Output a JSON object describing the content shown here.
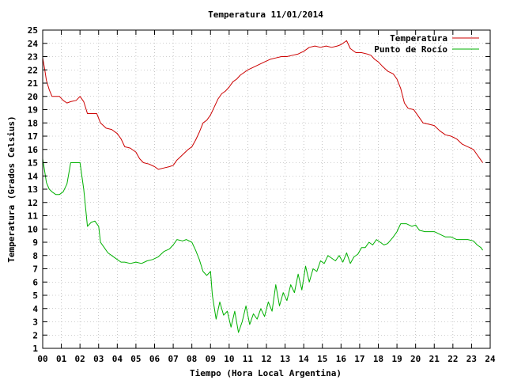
{
  "chart_data": {
    "type": "line",
    "title": "Temperatura 11/01/2014",
    "xlabel": "Tiempo (Hora Local Argentina)",
    "ylabel": "Temperatura (Grados Celsius)",
    "xlim": [
      0,
      24
    ],
    "ylim": [
      1,
      25
    ],
    "x_ticks": [
      "00",
      "01",
      "02",
      "03",
      "04",
      "05",
      "06",
      "07",
      "08",
      "09",
      "10",
      "11",
      "12",
      "13",
      "14",
      "15",
      "16",
      "17",
      "18",
      "19",
      "20",
      "21",
      "22",
      "23",
      "24"
    ],
    "y_ticks": [
      1,
      2,
      3,
      4,
      5,
      6,
      7,
      8,
      9,
      10,
      11,
      12,
      13,
      14,
      15,
      16,
      17,
      18,
      19,
      20,
      21,
      22,
      23,
      24,
      25
    ],
    "grid": true,
    "legend_position": "top-right",
    "series": [
      {
        "name": "Temperatura",
        "color": "#cc0000",
        "points": [
          [
            0.0,
            22.9
          ],
          [
            0.1,
            22.1
          ],
          [
            0.2,
            21.2
          ],
          [
            0.35,
            20.5
          ],
          [
            0.5,
            20.0
          ],
          [
            0.7,
            20.0
          ],
          [
            0.9,
            20.0
          ],
          [
            1.1,
            19.7
          ],
          [
            1.3,
            19.5
          ],
          [
            1.5,
            19.6
          ],
          [
            1.8,
            19.7
          ],
          [
            2.0,
            20.0
          ],
          [
            2.2,
            19.6
          ],
          [
            2.4,
            18.7
          ],
          [
            2.6,
            18.7
          ],
          [
            2.9,
            18.7
          ],
          [
            3.1,
            18.0
          ],
          [
            3.4,
            17.6
          ],
          [
            3.7,
            17.5
          ],
          [
            4.0,
            17.2
          ],
          [
            4.2,
            16.8
          ],
          [
            4.4,
            16.2
          ],
          [
            4.7,
            16.1
          ],
          [
            5.0,
            15.8
          ],
          [
            5.2,
            15.3
          ],
          [
            5.4,
            15.0
          ],
          [
            5.7,
            14.9
          ],
          [
            6.0,
            14.7
          ],
          [
            6.2,
            14.5
          ],
          [
            6.5,
            14.6
          ],
          [
            6.8,
            14.7
          ],
          [
            7.0,
            14.8
          ],
          [
            7.2,
            15.2
          ],
          [
            7.5,
            15.6
          ],
          [
            7.8,
            16.0
          ],
          [
            8.0,
            16.2
          ],
          [
            8.2,
            16.7
          ],
          [
            8.4,
            17.3
          ],
          [
            8.6,
            18.0
          ],
          [
            8.8,
            18.2
          ],
          [
            9.0,
            18.6
          ],
          [
            9.2,
            19.2
          ],
          [
            9.4,
            19.8
          ],
          [
            9.6,
            20.2
          ],
          [
            9.8,
            20.4
          ],
          [
            10.0,
            20.7
          ],
          [
            10.2,
            21.1
          ],
          [
            10.4,
            21.3
          ],
          [
            10.6,
            21.6
          ],
          [
            10.8,
            21.8
          ],
          [
            11.0,
            22.0
          ],
          [
            11.3,
            22.2
          ],
          [
            11.6,
            22.4
          ],
          [
            11.9,
            22.6
          ],
          [
            12.2,
            22.8
          ],
          [
            12.5,
            22.9
          ],
          [
            12.8,
            23.0
          ],
          [
            13.1,
            23.0
          ],
          [
            13.4,
            23.1
          ],
          [
            13.7,
            23.2
          ],
          [
            14.0,
            23.4
          ],
          [
            14.3,
            23.7
          ],
          [
            14.6,
            23.8
          ],
          [
            14.9,
            23.7
          ],
          [
            15.2,
            23.8
          ],
          [
            15.5,
            23.7
          ],
          [
            15.8,
            23.8
          ],
          [
            16.0,
            23.9
          ],
          [
            16.3,
            24.2
          ],
          [
            16.5,
            23.6
          ],
          [
            16.8,
            23.3
          ],
          [
            17.1,
            23.3
          ],
          [
            17.4,
            23.2
          ],
          [
            17.6,
            23.1
          ],
          [
            17.8,
            22.8
          ],
          [
            18.0,
            22.6
          ],
          [
            18.2,
            22.3
          ],
          [
            18.5,
            21.9
          ],
          [
            18.8,
            21.7
          ],
          [
            19.0,
            21.3
          ],
          [
            19.2,
            20.6
          ],
          [
            19.4,
            19.5
          ],
          [
            19.6,
            19.1
          ],
          [
            19.9,
            19.0
          ],
          [
            20.1,
            18.6
          ],
          [
            20.4,
            18.0
          ],
          [
            20.7,
            17.9
          ],
          [
            21.0,
            17.8
          ],
          [
            21.3,
            17.4
          ],
          [
            21.6,
            17.1
          ],
          [
            21.9,
            17.0
          ],
          [
            22.2,
            16.8
          ],
          [
            22.5,
            16.4
          ],
          [
            22.8,
            16.2
          ],
          [
            23.1,
            16.0
          ],
          [
            23.3,
            15.6
          ],
          [
            23.5,
            15.2
          ],
          [
            23.6,
            15.0
          ]
        ]
      },
      {
        "name": "Punto de Rocío",
        "color": "#00b000",
        "points": [
          [
            0.0,
            15.3
          ],
          [
            0.1,
            14.4
          ],
          [
            0.2,
            13.5
          ],
          [
            0.35,
            13.0
          ],
          [
            0.5,
            12.8
          ],
          [
            0.7,
            12.6
          ],
          [
            0.9,
            12.6
          ],
          [
            1.1,
            12.8
          ],
          [
            1.3,
            13.4
          ],
          [
            1.5,
            15.0
          ],
          [
            1.8,
            15.0
          ],
          [
            2.0,
            15.0
          ],
          [
            2.2,
            13.0
          ],
          [
            2.4,
            10.2
          ],
          [
            2.6,
            10.5
          ],
          [
            2.8,
            10.6
          ],
          [
            3.0,
            10.2
          ],
          [
            3.1,
            9.0
          ],
          [
            3.3,
            8.6
          ],
          [
            3.5,
            8.2
          ],
          [
            3.7,
            8.0
          ],
          [
            4.0,
            7.7
          ],
          [
            4.2,
            7.5
          ],
          [
            4.4,
            7.5
          ],
          [
            4.7,
            7.4
          ],
          [
            5.0,
            7.5
          ],
          [
            5.3,
            7.4
          ],
          [
            5.6,
            7.6
          ],
          [
            5.9,
            7.7
          ],
          [
            6.2,
            7.9
          ],
          [
            6.5,
            8.3
          ],
          [
            6.8,
            8.5
          ],
          [
            7.0,
            8.8
          ],
          [
            7.2,
            9.2
          ],
          [
            7.5,
            9.1
          ],
          [
            7.7,
            9.2
          ],
          [
            8.0,
            9.0
          ],
          [
            8.2,
            8.4
          ],
          [
            8.4,
            7.7
          ],
          [
            8.6,
            6.8
          ],
          [
            8.8,
            6.5
          ],
          [
            9.0,
            6.8
          ],
          [
            9.1,
            5.0
          ],
          [
            9.3,
            3.2
          ],
          [
            9.5,
            4.5
          ],
          [
            9.7,
            3.5
          ],
          [
            9.9,
            3.8
          ],
          [
            10.1,
            2.6
          ],
          [
            10.3,
            3.8
          ],
          [
            10.5,
            2.2
          ],
          [
            10.7,
            3.0
          ],
          [
            10.9,
            4.2
          ],
          [
            11.1,
            2.8
          ],
          [
            11.3,
            3.6
          ],
          [
            11.5,
            3.2
          ],
          [
            11.7,
            4.0
          ],
          [
            11.9,
            3.4
          ],
          [
            12.1,
            4.5
          ],
          [
            12.3,
            3.8
          ],
          [
            12.5,
            5.8
          ],
          [
            12.7,
            4.2
          ],
          [
            12.9,
            5.2
          ],
          [
            13.1,
            4.6
          ],
          [
            13.3,
            5.8
          ],
          [
            13.5,
            5.2
          ],
          [
            13.7,
            6.6
          ],
          [
            13.9,
            5.4
          ],
          [
            14.1,
            7.2
          ],
          [
            14.3,
            6.0
          ],
          [
            14.5,
            7.0
          ],
          [
            14.7,
            6.8
          ],
          [
            14.9,
            7.6
          ],
          [
            15.1,
            7.4
          ],
          [
            15.3,
            8.0
          ],
          [
            15.5,
            7.8
          ],
          [
            15.7,
            7.6
          ],
          [
            15.9,
            8.0
          ],
          [
            16.1,
            7.5
          ],
          [
            16.3,
            8.2
          ],
          [
            16.5,
            7.4
          ],
          [
            16.7,
            7.9
          ],
          [
            16.9,
            8.1
          ],
          [
            17.1,
            8.6
          ],
          [
            17.3,
            8.6
          ],
          [
            17.5,
            9.0
          ],
          [
            17.7,
            8.8
          ],
          [
            17.9,
            9.2
          ],
          [
            18.1,
            9.0
          ],
          [
            18.3,
            8.8
          ],
          [
            18.5,
            8.9
          ],
          [
            18.8,
            9.4
          ],
          [
            19.0,
            9.8
          ],
          [
            19.2,
            10.4
          ],
          [
            19.5,
            10.4
          ],
          [
            19.8,
            10.2
          ],
          [
            20.0,
            10.3
          ],
          [
            20.2,
            9.9
          ],
          [
            20.5,
            9.8
          ],
          [
            20.8,
            9.8
          ],
          [
            21.0,
            9.8
          ],
          [
            21.3,
            9.6
          ],
          [
            21.6,
            9.4
          ],
          [
            21.9,
            9.4
          ],
          [
            22.2,
            9.2
          ],
          [
            22.5,
            9.2
          ],
          [
            22.8,
            9.2
          ],
          [
            23.1,
            9.1
          ],
          [
            23.3,
            8.8
          ],
          [
            23.5,
            8.6
          ],
          [
            23.6,
            8.4
          ]
        ]
      }
    ]
  }
}
